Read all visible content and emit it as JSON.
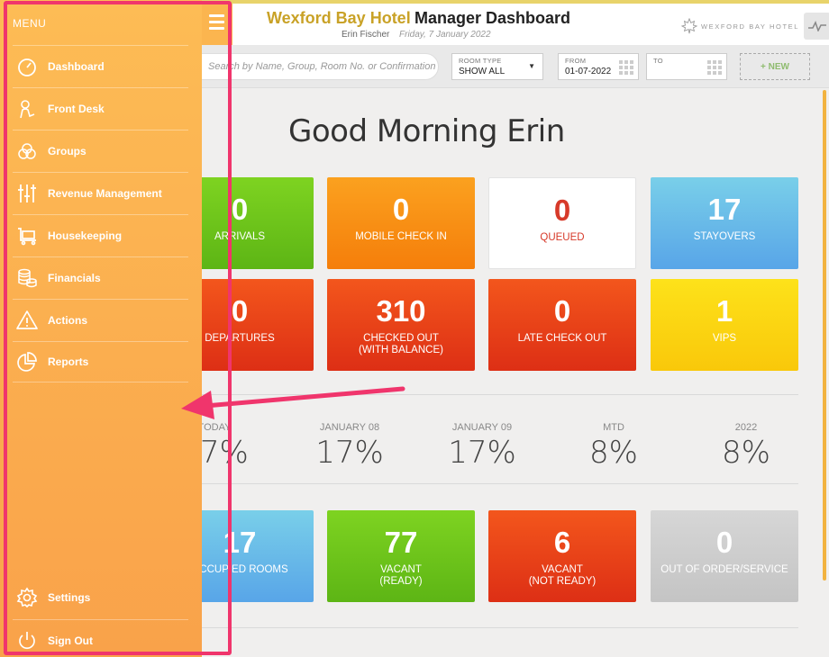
{
  "header": {
    "hotel_name": "Wexford Bay Hotel",
    "title": "Manager Dashboard",
    "user": "Erin Fischer",
    "date": "Friday, 7 January 2022",
    "logo_text": "WEXFORD BAY HOTEL",
    "pulse_icon": "activity-icon"
  },
  "toolbar": {
    "search_placeholder": "Search by Name, Group, Room No. or Confirmation No.",
    "room_type_label": "ROOM TYPE",
    "room_type_value": "SHOW ALL",
    "from_label": "FROM",
    "from_value": "01-07-2022",
    "to_label": "TO",
    "to_value": "",
    "new_label": "+ NEW"
  },
  "greeting": "Good Morning Erin",
  "tiles_row1": [
    {
      "num": "0",
      "label": "ARRIVALS",
      "color": "#6cc41b"
    },
    {
      "num": "0",
      "label": "MOBILE CHECK IN",
      "color": "#f88f13"
    },
    {
      "num": "0",
      "label": "QUEUED",
      "color": "#ffffff"
    },
    {
      "num": "17",
      "label": "STAYOVERS",
      "color": "#67b9e8"
    }
  ],
  "tiles_row2": [
    {
      "num": "0",
      "label": "DEPARTURES",
      "color": "#e73d18"
    },
    {
      "num": "310",
      "label": "CHECKED OUT",
      "label2": "(WITH BALANCE)",
      "color": "#e73d18"
    },
    {
      "num": "0",
      "label": "LATE CHECK OUT",
      "color": "#e73d18"
    },
    {
      "num": "1",
      "label": "VIPS",
      "color": "#fbd411"
    }
  ],
  "occupancy": [
    {
      "label": "TODAY",
      "value": "17%"
    },
    {
      "label": "JANUARY 08",
      "value": "17%"
    },
    {
      "label": "JANUARY 09",
      "value": "17%"
    },
    {
      "label": "MTD",
      "value": "8%"
    },
    {
      "label": "2022",
      "value": "8%"
    }
  ],
  "tiles_row3": [
    {
      "num": "17",
      "label": "OCCUPIED ROOMS",
      "color": "#67b9e8"
    },
    {
      "num": "77",
      "label": "VACANT",
      "label2": "(READY)",
      "color": "#6cc41b"
    },
    {
      "num": "6",
      "label": "VACANT",
      "label2": "(NOT READY)",
      "color": "#e73d18"
    },
    {
      "num": "0",
      "label": "OUT OF ORDER/SERVICE",
      "color": "#cccccc"
    }
  ],
  "sidebar": {
    "menu_title": "MENU",
    "items": [
      {
        "label": "Dashboard",
        "icon": "speedometer-icon"
      },
      {
        "label": "Front Desk",
        "icon": "bellhop-icon"
      },
      {
        "label": "Groups",
        "icon": "groups-icon"
      },
      {
        "label": "Revenue Management",
        "icon": "sliders-icon"
      },
      {
        "label": "Housekeeping",
        "icon": "cart-icon"
      },
      {
        "label": "Financials",
        "icon": "coins-icon"
      },
      {
        "label": "Actions",
        "icon": "warning-icon"
      },
      {
        "label": "Reports",
        "icon": "pie-chart-icon"
      }
    ],
    "bottom_items": [
      {
        "label": "Settings",
        "icon": "gear-icon"
      },
      {
        "label": "Sign Out",
        "icon": "power-icon"
      }
    ]
  },
  "annotation": {
    "highlight_color": "#f0356c"
  }
}
